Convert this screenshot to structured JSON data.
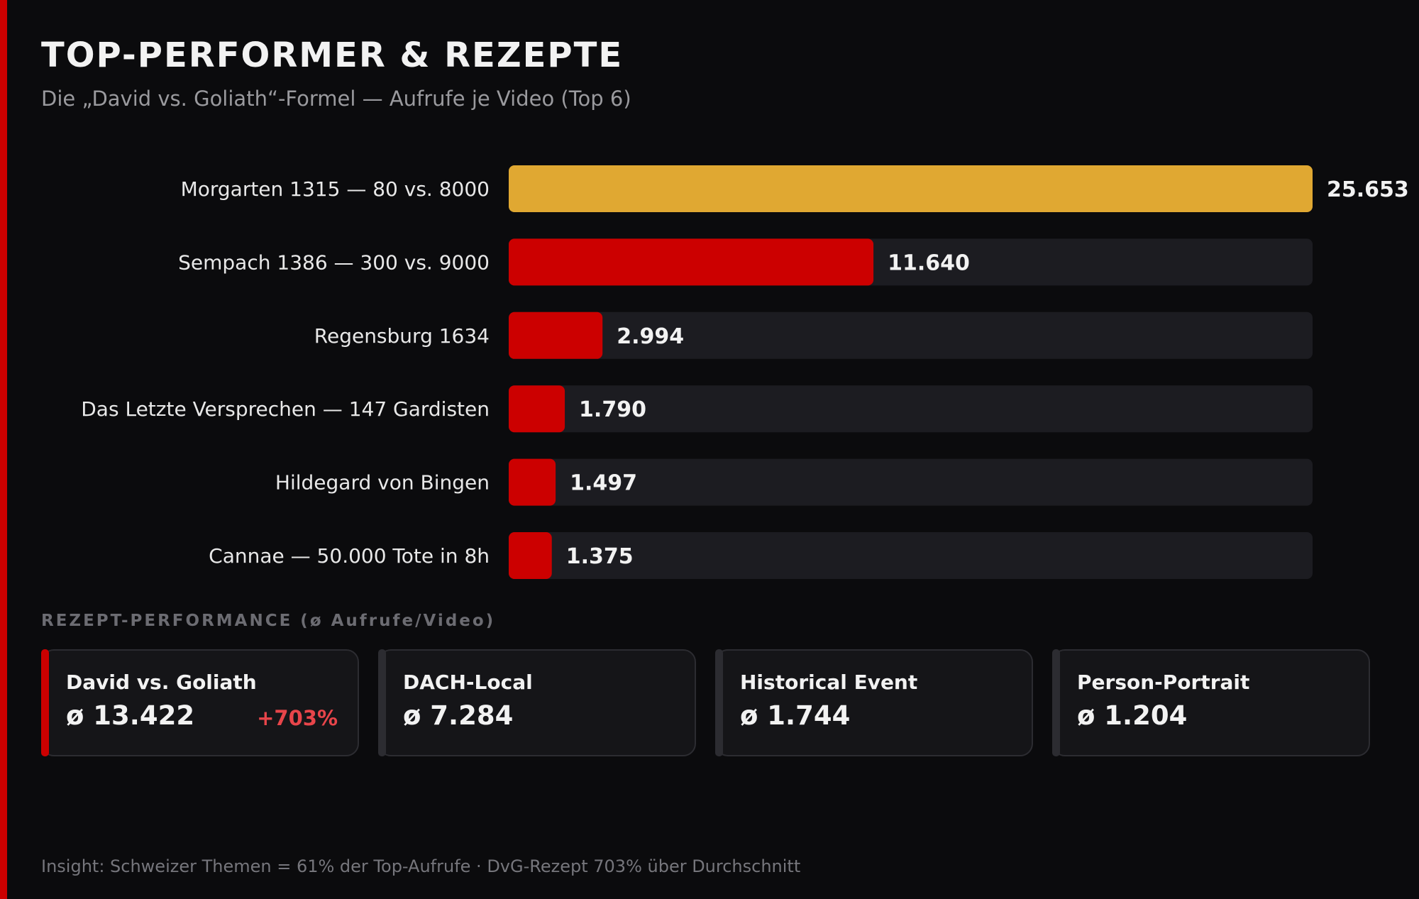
{
  "header": {
    "title": "TOP-PERFORMER & REZEPTE",
    "subtitle": "Die „David vs. Goliath“-Formel — Aufrufe je Video (Top 6)"
  },
  "chart_data": {
    "type": "bar",
    "orientation": "horizontal",
    "categories": [
      "Morgarten 1315 — 80 vs. 8000",
      "Sempach 1386 — 300 vs. 9000",
      "Regensburg 1634",
      "Das Letzte Versprechen — 147 Gardisten",
      "Hildegard von Bingen",
      "Cannae — 50.000 Tote in 8h"
    ],
    "values": [
      25653,
      11640,
      2994,
      1790,
      1497,
      1375
    ],
    "value_labels": [
      "25.653",
      "11.640",
      "2.994",
      "1.790",
      "1.497",
      "1.375"
    ],
    "xlim": [
      0,
      25653
    ],
    "grid": false,
    "legend": "none",
    "colors": {
      "highlight": "#e0a832",
      "bar": "#cc0000",
      "track": "#1c1c21"
    }
  },
  "recipes": {
    "section_label": "REZEPT-PERFORMANCE (ø Aufrufe/Video)",
    "cards": [
      {
        "name": "David vs. Goliath",
        "value": "ø 13.422",
        "delta": "+703%",
        "accent": "#cc0000"
      },
      {
        "name": "DACH-Local",
        "value": "ø 7.284",
        "delta": "",
        "accent": "#2c2c31"
      },
      {
        "name": "Historical Event",
        "value": "ø 1.744",
        "delta": "",
        "accent": "#2c2c31"
      },
      {
        "name": "Person-Portrait",
        "value": "ø 1.204",
        "delta": "",
        "accent": "#2c2c31"
      }
    ]
  },
  "footer": {
    "insight": "Insight: Schweizer Themen = 61% der Top-Aufrufe · DvG-Rezept 703% über Durchschnitt"
  }
}
